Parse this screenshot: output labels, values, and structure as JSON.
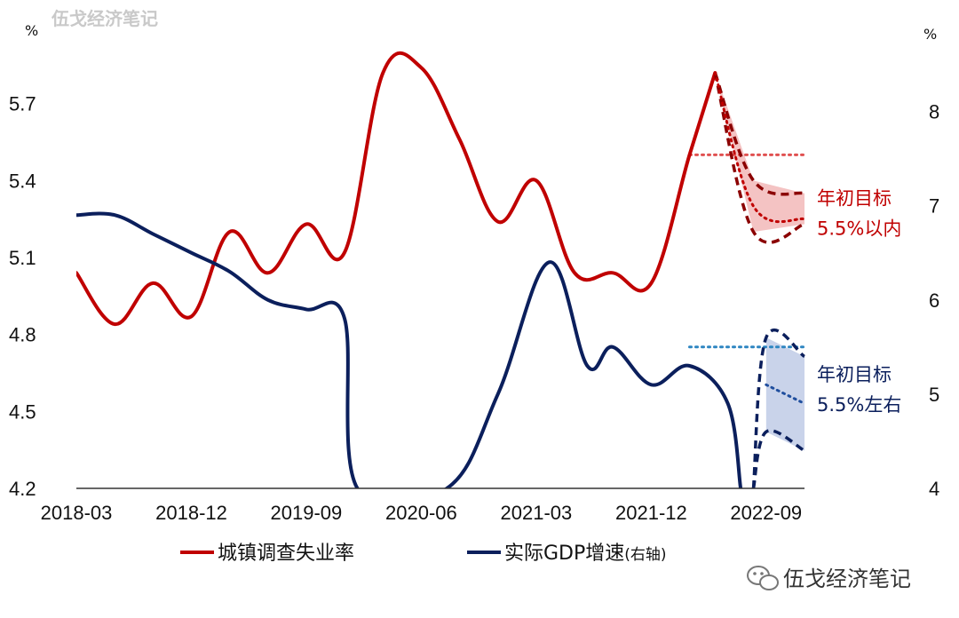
{
  "watermark": "伍戈经济笔记",
  "brand": {
    "name": "伍戈经济笔记",
    "icon": "wechat-icon"
  },
  "chart_data": {
    "type": "line",
    "colors": {
      "unemployment": "#c00000",
      "gdp": "#0b1f5c",
      "unemp_target_line": "#e05050",
      "gdp_target_line": "#2e86c1",
      "unemp_band": "#f4c3c3",
      "gdp_band": "#c9d3ea"
    },
    "x_tick_labels": [
      "2018-03",
      "2018-12",
      "2019-09",
      "2020-06",
      "2021-03",
      "2021-12",
      "2022-09"
    ],
    "x_range": [
      "2018-03",
      "2022-12"
    ],
    "left_axis": {
      "unit": "%",
      "range": [
        4.2,
        6.0
      ],
      "ticks": [
        "5.7",
        "5.4",
        "5.1",
        "4.8",
        "4.5",
        "4.2"
      ]
    },
    "right_axis": {
      "unit": "%",
      "range": [
        4,
        8.9
      ],
      "ticks": [
        "8",
        "7",
        "6",
        "5",
        "4"
      ]
    },
    "series": [
      {
        "name": "城镇调查失业率",
        "axis": "left",
        "points": [
          [
            "2018-03",
            5.04
          ],
          [
            "2018-06",
            4.84
          ],
          [
            "2018-09",
            5.0
          ],
          [
            "2018-12",
            4.87
          ],
          [
            "2019-03",
            5.2
          ],
          [
            "2019-06",
            5.04
          ],
          [
            "2019-09",
            5.23
          ],
          [
            "2019-12",
            5.12
          ],
          [
            "2020-03",
            5.82
          ],
          [
            "2020-06",
            5.84
          ],
          [
            "2020-09",
            5.56
          ],
          [
            "2020-12",
            5.24
          ],
          [
            "2021-03",
            5.4
          ],
          [
            "2021-06",
            5.04
          ],
          [
            "2021-09",
            5.04
          ],
          [
            "2021-12",
            5.0
          ],
          [
            "2022-03",
            5.5
          ],
          [
            "2022-05",
            5.82
          ]
        ]
      },
      {
        "name": "实际GDP增速",
        "note": "(右轴)",
        "axis": "right",
        "points": [
          [
            "2018-03",
            6.9
          ],
          [
            "2018-06",
            6.9
          ],
          [
            "2018-09",
            6.7
          ],
          [
            "2018-12",
            6.5
          ],
          [
            "2019-03",
            6.3
          ],
          [
            "2019-06",
            6.0
          ],
          [
            "2019-09",
            5.9
          ],
          [
            "2019-12",
            5.8
          ],
          [
            "2020-01",
            4.0
          ],
          [
            "2020-08",
            4.0
          ],
          [
            "2020-12",
            5.0
          ],
          [
            "2021-04",
            6.4
          ],
          [
            "2021-07",
            5.3
          ],
          [
            "2021-09",
            5.5
          ],
          [
            "2021-12",
            5.1
          ],
          [
            "2022-03",
            5.3
          ],
          [
            "2022-06",
            4.9
          ],
          [
            "2022-07",
            4.0
          ]
        ]
      }
    ],
    "projections": {
      "unemployment": {
        "start": [
          "2022-05",
          5.82
        ],
        "upper": [
          [
            "2022-08",
            5.4
          ],
          [
            "2022-12",
            5.35
          ]
        ],
        "middle": [
          [
            "2022-08",
            5.3
          ],
          [
            "2022-12",
            5.25
          ]
        ],
        "lower": [
          [
            "2022-08",
            5.2
          ],
          [
            "2022-12",
            5.23
          ]
        ]
      },
      "gdp": {
        "upper": [
          [
            "2022-08",
            4.0
          ],
          [
            "2022-09",
            5.6
          ],
          [
            "2022-12",
            5.4
          ]
        ],
        "middle": [
          [
            "2022-09",
            5.1
          ],
          [
            "2022-12",
            4.9
          ]
        ],
        "lower": [
          [
            "2022-09",
            4.6
          ],
          [
            "2022-12",
            4.4
          ]
        ]
      }
    },
    "targets": [
      {
        "axis": "left",
        "value": 5.5,
        "from": "2022-03",
        "to": "2022-12",
        "label_lines": [
          "年初目标",
          "5.5%以内"
        ]
      },
      {
        "axis": "right",
        "value": 5.5,
        "from": "2022-03",
        "to": "2022-12",
        "label_lines": [
          "年初目标",
          "5.5%左右"
        ]
      }
    ],
    "legend": {
      "placement": "bottom"
    },
    "grid": false
  }
}
